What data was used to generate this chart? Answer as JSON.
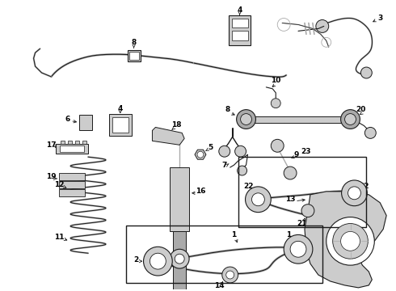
{
  "background_color": "#ffffff",
  "fig_width": 4.9,
  "fig_height": 3.6,
  "dpi": 100,
  "line_color": "#1a1a1a",
  "gray_color": "#888888",
  "light_gray": "#cccccc",
  "mid_gray": "#aaaaaa"
}
